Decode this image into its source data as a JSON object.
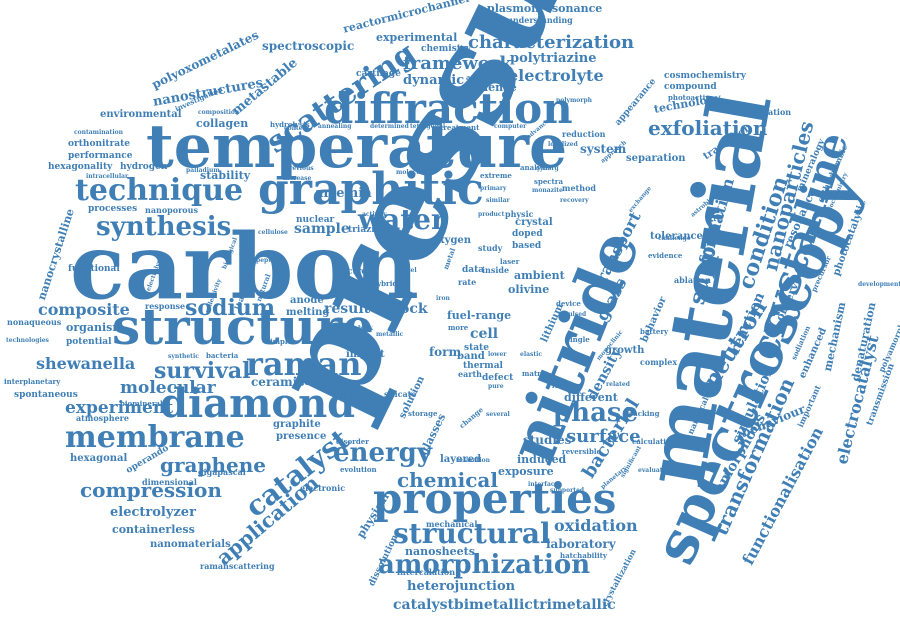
{
  "theme": {
    "word_color": "#3f7fb5",
    "background": "#ffffff"
  },
  "words": {
    "pressure": "pressure",
    "carbon": "carbon",
    "material": "material",
    "nitride": "nitride",
    "structure": "structure",
    "temperature": "temperature",
    "spectroscopy": "spectroscopy",
    "diffraction": "diffraction",
    "graphitic": "graphitic",
    "diamond": "diamond",
    "properties": "properties",
    "membrane": "membrane",
    "technique": "technique",
    "crystalline": "crystalline",
    "raman": "raman",
    "amorphization": "amorphization",
    "structural": "structural",
    "energy": "energy",
    "synthesis": "synthesis",
    "scattering": "scattering",
    "catalyst": "catalyst",
    "phase": "phase",
    "sodium": "sodium",
    "water": "water",
    "survival": "survival",
    "compression": "compression",
    "application": "application",
    "neutron": "neutron",
    "support": "support",
    "transformation": "transformation",
    "condition": "condition",
    "nanoparticles": "nanoparticles",
    "exfoliation": "exfoliation",
    "characterization": "characterization",
    "framework": "framework",
    "chemical": "chemical",
    "graphene": "graphene",
    "experiment": "experiment",
    "molecular": "molecular",
    "composite": "composite",
    "shewanella": "shewanella",
    "electrolyte": "electrolyte",
    "surface": "surface",
    "bacterial": "bacterial",
    "oxidation": "oxidation",
    "catalystbimetallictrimetallic": "catalystbimetallictrimetallic",
    "heterojunction": "heterojunction",
    "nanosheets": "nanosheets",
    "laboratory": "laboratory",
    "functionalisation": "functionalisation",
    "electrocatalyst": "electrocatalyst",
    "amorphous": "amorphous",
    "transport": "transport",
    "formation": "formation",
    "simulation": "simulation",
    "reaction": "reaction",
    "glass": "glass",
    "density": "density",
    "nanostructures": "nanostructures",
    "metastable": "metastable",
    "polyoxometalates": "polyoxometalates",
    "spectroscopic": "spectroscopic",
    "reactormicrochannel": "reactormicrochannel",
    "plasmonresonance": "plasmonresonance",
    "experimental": "experimental",
    "polytriazine": "polytriazine",
    "dynamic": "dynamic",
    "science": "science",
    "understanding": "understanding",
    "chemistry": "chemistry",
    "cosmochemistry": "cosmochemistry",
    "compound": "compound",
    "photoactive": "photoactive",
    "technology": "technology",
    "condensation": "condensation",
    "appearance": "appearance",
    "artemia": "artemia",
    "stability": "stability",
    "collagen": "collagen",
    "environmental": "environmental",
    "orthonitrate": "orthonitrate",
    "performance": "performance",
    "hexagonality": "hexagonality",
    "hydrogen": "hydrogen",
    "processes": "processes",
    "nanocrystalline": "nanocrystalline",
    "sample": "sample",
    "triazine": "triazine",
    "oxygen": "oxygen",
    "result": "result",
    "shock": "shock",
    "organism": "organism",
    "potential": "potential",
    "ceramic": "ceramic",
    "polymer": "polymer",
    "cell": "cell",
    "fuel-range": "fuel-range",
    "form": "form",
    "lithium": "lithium",
    "growth": "growth",
    "behavior": "behavior",
    "behaviour": "behaviour",
    "tolerance": "tolerance",
    "ablation": "ablation",
    "resonance": "resonance",
    "observed": "observed",
    "separation": "separation",
    "transition": "transition",
    "system": "system",
    "mechanism": "mechanism",
    "denaturation": "denaturation",
    "enhanced": "enhanced",
    "transmission": "transmission",
    "photocatalytic": "photocatalytic",
    "mineralogy": "mineralogy",
    "orthorhombic": "orthorhombic",
    "exposure": "exposure",
    "studies": "studies",
    "induced": "induced",
    "different": "different",
    "layered": "layered",
    "crystal": "crystal",
    "ambient": "ambient",
    "olivine": "olivine",
    "doped": "doped",
    "based": "based",
    "electrolyzer": "electrolyzer",
    "containerless": "containerless",
    "nanomaterials": "nanomaterials",
    "ramanscattering": "ramanscattering",
    "hexagonal": "hexagonal",
    "operando": "operando",
    "dimensional": "dimensional",
    "gigapascal": "gigapascal",
    "spontaneous": "spontaneous",
    "nonaqueous": "nonaqueous",
    "atmosphere": "atmosphere",
    "interplanetary": "interplanetary",
    "graphite": "graphite",
    "presence": "presence",
    "electronic": "electronic",
    "mechanical": "mechanical",
    "physical": "physical",
    "dissolution": "dissolution",
    "intercalation": "intercalation",
    "thermal": "thermal",
    "state": "state",
    "defect": "defect",
    "band": "band",
    "impact": "impact",
    "anode": "anode",
    "melting": "melting",
    "response": "response",
    "functional": "functional",
    "nanoporous": "nanoporous",
    "nuclear": "nuclear",
    "electron": "electron",
    "silicate": "silicate",
    "hydrolysis": "hydrolysis",
    "annealing": "annealing",
    "treatment": "treatment",
    "reduction": "reduction",
    "analysis": "analysis",
    "extreme": "extreme",
    "spectra": "spectra",
    "method": "method",
    "adaptation": "adaptation",
    "investigation": "investigation",
    "cartilage": "cartilage",
    "physic": "physic",
    "study": "study",
    "calculation": "calculation",
    "stacking": "stacking",
    "complex": "complex",
    "battery": "battery",
    "evidence": "evidence",
    "challenge": "challenge",
    "nanoscale": "nanoscale",
    "important": "important",
    "development": "development",
    "polyamorphism": "polyamorphism",
    "sodiation": "sodiation",
    "precursor": "precursor",
    "crystallization": "crystallization",
    "hatchability": "hatchability",
    "evaluation": "evaluation",
    "reversible": "reversible",
    "single": "single",
    "device": "device",
    "pulsed": "pulsed",
    "matrix": "matrix",
    "earth": "earth",
    "storage": "storage",
    "disorder": "disorder",
    "evolution": "evolution",
    "relaxation": "relaxation",
    "several": "several",
    "change": "change",
    "related": "related",
    "supported": "supported",
    "planetary": "planetary",
    "significant": "significant",
    "solution": "solution",
    "glasses": "glasses",
    "simple": "simple",
    "bacteria": "bacteria",
    "synthetic": "synthetic",
    "biominerals": "biominerals",
    "natural": "natural",
    "peptide": "peptide",
    "cellulose": "cellulose",
    "loading": "loading",
    "composition": "composition",
    "palladium": "palladium",
    "increase": "increase",
    "previous": "previous",
    "technologies": "technologies",
    "contamination": "contamination",
    "intracellular": "intracellular",
    "electrolysis": "electrolysis",
    "metal": "metal",
    "data": "data",
    "inside": "inside",
    "rate": "rate",
    "laser": "laser",
    "activity": "activity",
    "content": "content",
    "similar": "similar",
    "product": "product",
    "molecule": "molecule",
    "computer": "computer",
    "advanced": "advanced",
    "tetragonal": "tetragonal",
    "determined": "determined",
    "polymorph": "polymorph",
    "monazite": "monazite",
    "recovery": "recovery",
    "approach": "approach",
    "cyborg": "cyborg",
    "biological": "biological",
    "reflectivity": "reflectivity",
    "exchange": "exchange",
    "astrobiology": "astrobiology",
    "biochemistry": "biochemistry",
    "monoclinic": "monoclinic",
    "localized": "localized",
    "primary": "primary",
    "elastic": "elastic",
    "zeolite": "zeolite",
    "lower": "lower",
    "more": "more",
    "pure": "pure",
    "rich": "rich",
    "hybrid": "hybrid",
    "ionic": "ionic",
    "model": "model",
    "metallic": "metallic",
    "bulk": "bulk",
    "iron": "iron",
    "interface": "interface"
  }
}
